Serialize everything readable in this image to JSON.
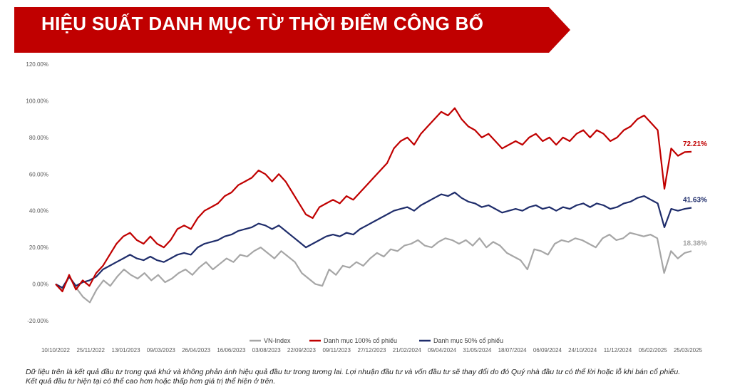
{
  "banner": {
    "title": "HIỆU SUẤT DANH MỤC TỪ THỜI ĐIỂM CÔNG BỐ",
    "color": "#c00000"
  },
  "chart_data": {
    "type": "line",
    "title": "",
    "xlabel": "",
    "ylabel": "",
    "ylim": [
      -20,
      120
    ],
    "y_ticks": [
      "-20.00%",
      "0.00%",
      "20.00%",
      "40.00%",
      "60.00%",
      "80.00%",
      "100.00%",
      "120.00%"
    ],
    "y_tick_values": [
      -20,
      0,
      20,
      40,
      60,
      80,
      100,
      120
    ],
    "x_ticks": [
      "10/10/2022",
      "25/11/2022",
      "13/01/2023",
      "09/03/2023",
      "26/04/2023",
      "16/06/2023",
      "03/08/2023",
      "22/09/2023",
      "09/11/2023",
      "27/12/2023",
      "21/02/2024",
      "09/04/2024",
      "31/05/2024",
      "18/07/2024",
      "06/09/2024",
      "24/10/2024",
      "11/12/2024",
      "05/02/2025",
      "25/03/2025"
    ],
    "grid": false,
    "legend_position": "bottom",
    "series": [
      {
        "name": "VN-Index",
        "color": "#a6a6a6",
        "end_label": "18.38%",
        "values": [
          0,
          -3,
          4,
          -2,
          -7,
          -10,
          -3,
          2,
          -1,
          4,
          8,
          5,
          3,
          6,
          2,
          5,
          1,
          3,
          6,
          8,
          5,
          9,
          12,
          8,
          11,
          14,
          12,
          16,
          15,
          18,
          20,
          17,
          14,
          18,
          15,
          12,
          6,
          3,
          0,
          -1,
          8,
          5,
          10,
          9,
          12,
          10,
          14,
          17,
          15,
          19,
          18,
          21,
          22,
          24,
          21,
          20,
          23,
          25,
          24,
          22,
          24,
          21,
          25,
          20,
          23,
          21,
          17,
          15,
          13,
          8,
          19,
          18,
          16,
          22,
          24,
          23,
          25,
          24,
          22,
          20,
          25,
          27,
          24,
          25,
          28,
          27,
          26,
          27,
          25,
          6,
          18,
          14,
          17,
          18
        ]
      },
      {
        "name": "Danh mục 100% cổ phiếu",
        "color": "#c00000",
        "end_label": "72.21%",
        "values": [
          0,
          -4,
          5,
          -3,
          2,
          -1,
          6,
          10,
          16,
          22,
          26,
          28,
          24,
          22,
          26,
          22,
          20,
          24,
          30,
          32,
          30,
          36,
          40,
          42,
          44,
          48,
          50,
          54,
          56,
          58,
          62,
          60,
          56,
          60,
          56,
          50,
          44,
          38,
          36,
          42,
          44,
          46,
          44,
          48,
          46,
          50,
          54,
          58,
          62,
          66,
          74,
          78,
          80,
          76,
          82,
          86,
          90,
          94,
          92,
          96,
          90,
          86,
          84,
          80,
          82,
          78,
          74,
          76,
          78,
          76,
          80,
          82,
          78,
          80,
          76,
          80,
          78,
          82,
          84,
          80,
          84,
          82,
          78,
          80,
          84,
          86,
          90,
          92,
          88,
          84,
          52,
          74,
          70,
          72,
          72.21
        ]
      },
      {
        "name": "Danh mục 50% cổ phiếu",
        "color": "#1f2d6b",
        "end_label": "41.63%",
        "values": [
          0,
          -2,
          4,
          -1,
          1,
          2,
          4,
          8,
          10,
          12,
          14,
          16,
          14,
          13,
          15,
          13,
          12,
          14,
          16,
          17,
          16,
          20,
          22,
          23,
          24,
          26,
          27,
          29,
          30,
          31,
          33,
          32,
          30,
          32,
          29,
          26,
          23,
          20,
          22,
          24,
          26,
          27,
          26,
          28,
          27,
          30,
          32,
          34,
          36,
          38,
          40,
          41,
          42,
          40,
          43,
          45,
          47,
          49,
          48,
          50,
          47,
          45,
          44,
          42,
          43,
          41,
          39,
          40,
          41,
          40,
          42,
          43,
          41,
          42,
          40,
          42,
          41,
          43,
          44,
          42,
          44,
          43,
          41,
          42,
          44,
          45,
          47,
          48,
          46,
          44,
          31,
          41,
          40,
          41,
          41.63
        ]
      }
    ]
  },
  "footnote": {
    "line1": "Dữ liệu trên là kết quả đầu tư trong quá khứ và không phản ánh hiệu quả đầu tư trong tương lai. Lợi nhuận đầu tư và vốn đầu tư sẽ thay đổi do đó Quý nhà đầu tư có thể lời hoặc lỗ khi bán cổ phiếu.",
    "line2": "Kết quả đầu tư hiện tại có thể cao hơn hoặc thấp hơn giá trị thể hiện ở trên."
  }
}
